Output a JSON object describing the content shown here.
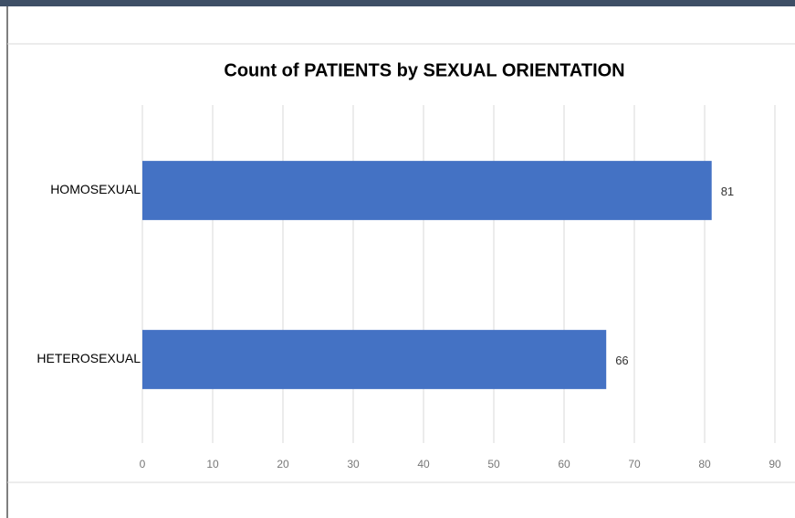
{
  "chart_data": {
    "type": "bar",
    "orientation": "horizontal",
    "title": "Count of PATIENTS by SEXUAL ORIENTATION",
    "categories": [
      "HOMOSEXUAL",
      "HETEROSEXUAL"
    ],
    "values": [
      81,
      66
    ],
    "color": "#4472c4",
    "xlim": [
      0,
      90
    ],
    "xticks": [
      0,
      10,
      20,
      30,
      40,
      50,
      60,
      70,
      80,
      90
    ],
    "grid": true
  }
}
